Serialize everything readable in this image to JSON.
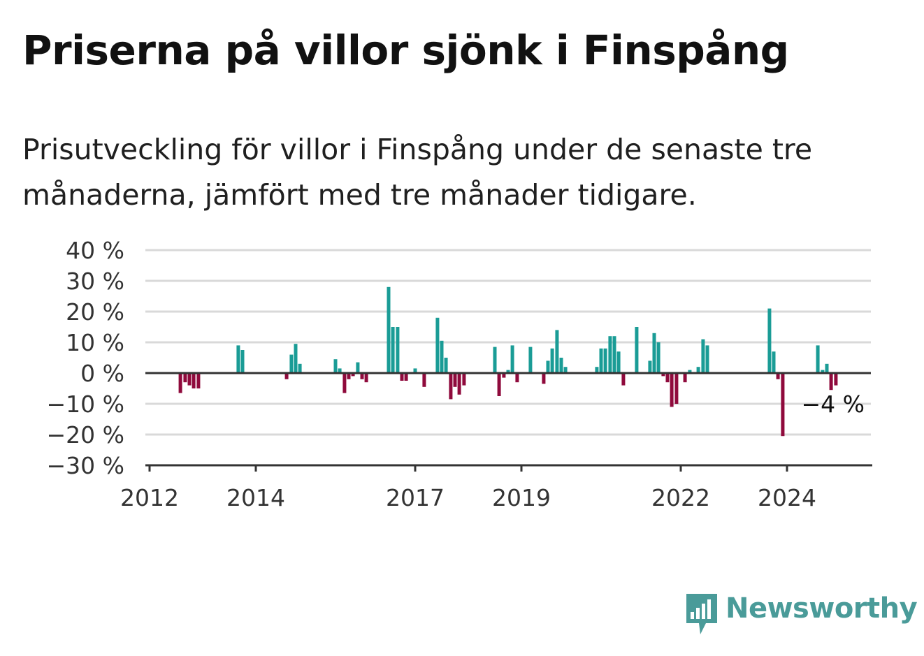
{
  "title": "Priserna på villor sjönk i Finspång",
  "subtitle": "Prisutveckling för villor i Finspång under de senaste tre månaderna, jämfört med tre månader tidigare.",
  "brand": {
    "name": "Newsworthy",
    "color": "#4a9b99",
    "icon": "newsworthy-bar-icon"
  },
  "colors": {
    "positive": "#1a9c96",
    "negative": "#8f0a3c",
    "grid": "#d9d9d9",
    "zero_line": "#333333"
  },
  "chart_data": {
    "type": "bar",
    "ylim": [
      -30,
      40
    ],
    "yticks": [
      40,
      30,
      20,
      10,
      0,
      -10,
      -20,
      -30
    ],
    "ytick_labels": [
      "40 %",
      "30 %",
      "20 %",
      "10 %",
      "0 %",
      "−10 %",
      "−20 %",
      "−30 %"
    ],
    "xlim": [
      2012,
      2025.8
    ],
    "xticks": [
      2012,
      2014,
      2017,
      2019,
      2022,
      2024
    ],
    "xtick_labels": [
      "2012",
      "2014",
      "2017",
      "2019",
      "2022",
      "2024"
    ],
    "end_label": "−4 %",
    "grid": true,
    "bars": [
      {
        "x": 2012.58,
        "v": -6.5
      },
      {
        "x": 2012.67,
        "v": -3
      },
      {
        "x": 2012.75,
        "v": -4
      },
      {
        "x": 2012.83,
        "v": -5
      },
      {
        "x": 2012.92,
        "v": -5
      },
      {
        "x": 2013.67,
        "v": 9
      },
      {
        "x": 2013.75,
        "v": 7.5
      },
      {
        "x": 2014.58,
        "v": -2
      },
      {
        "x": 2014.67,
        "v": 6
      },
      {
        "x": 2014.75,
        "v": 9.5
      },
      {
        "x": 2014.83,
        "v": 3
      },
      {
        "x": 2015.5,
        "v": 4.5
      },
      {
        "x": 2015.58,
        "v": 1.5
      },
      {
        "x": 2015.67,
        "v": -6.5
      },
      {
        "x": 2015.75,
        "v": -2
      },
      {
        "x": 2015.83,
        "v": -1
      },
      {
        "x": 2015.92,
        "v": 3.5
      },
      {
        "x": 2016.0,
        "v": -2
      },
      {
        "x": 2016.08,
        "v": -3
      },
      {
        "x": 2016.5,
        "v": 28
      },
      {
        "x": 2016.58,
        "v": 15
      },
      {
        "x": 2016.67,
        "v": 15
      },
      {
        "x": 2016.75,
        "v": -2.5
      },
      {
        "x": 2016.83,
        "v": -2.5
      },
      {
        "x": 2017.0,
        "v": 1.5
      },
      {
        "x": 2017.17,
        "v": -4.5
      },
      {
        "x": 2017.42,
        "v": 18
      },
      {
        "x": 2017.5,
        "v": 10.5
      },
      {
        "x": 2017.58,
        "v": 5
      },
      {
        "x": 2017.67,
        "v": -8.5
      },
      {
        "x": 2017.75,
        "v": -4.5
      },
      {
        "x": 2017.83,
        "v": -7
      },
      {
        "x": 2017.92,
        "v": -4
      },
      {
        "x": 2018.5,
        "v": 8.5
      },
      {
        "x": 2018.58,
        "v": -7.5
      },
      {
        "x": 2018.67,
        "v": -1.5
      },
      {
        "x": 2018.75,
        "v": 1
      },
      {
        "x": 2018.83,
        "v": 9
      },
      {
        "x": 2018.92,
        "v": -3
      },
      {
        "x": 2019.17,
        "v": 8.5
      },
      {
        "x": 2019.42,
        "v": -3.5
      },
      {
        "x": 2019.5,
        "v": 4
      },
      {
        "x": 2019.58,
        "v": 8
      },
      {
        "x": 2019.67,
        "v": 14
      },
      {
        "x": 2019.75,
        "v": 5
      },
      {
        "x": 2019.83,
        "v": 2
      },
      {
        "x": 2020.42,
        "v": 2
      },
      {
        "x": 2020.5,
        "v": 8
      },
      {
        "x": 2020.58,
        "v": 8
      },
      {
        "x": 2020.67,
        "v": 12
      },
      {
        "x": 2020.75,
        "v": 12
      },
      {
        "x": 2020.83,
        "v": 7
      },
      {
        "x": 2020.92,
        "v": -4
      },
      {
        "x": 2021.17,
        "v": 15
      },
      {
        "x": 2021.42,
        "v": 4
      },
      {
        "x": 2021.5,
        "v": 13
      },
      {
        "x": 2021.58,
        "v": 10
      },
      {
        "x": 2021.67,
        "v": -1
      },
      {
        "x": 2021.75,
        "v": -3
      },
      {
        "x": 2021.83,
        "v": -11
      },
      {
        "x": 2021.92,
        "v": -10
      },
      {
        "x": 2022.08,
        "v": -3
      },
      {
        "x": 2022.17,
        "v": 1
      },
      {
        "x": 2022.33,
        "v": 2
      },
      {
        "x": 2022.42,
        "v": 11
      },
      {
        "x": 2022.5,
        "v": 9
      },
      {
        "x": 2023.67,
        "v": 21
      },
      {
        "x": 2023.75,
        "v": 7
      },
      {
        "x": 2023.83,
        "v": -2
      },
      {
        "x": 2023.92,
        "v": -20.5
      },
      {
        "x": 2024.58,
        "v": 9
      },
      {
        "x": 2024.67,
        "v": 1
      },
      {
        "x": 2024.75,
        "v": 3
      },
      {
        "x": 2024.83,
        "v": -5.5
      },
      {
        "x": 2024.92,
        "v": -4
      }
    ]
  }
}
